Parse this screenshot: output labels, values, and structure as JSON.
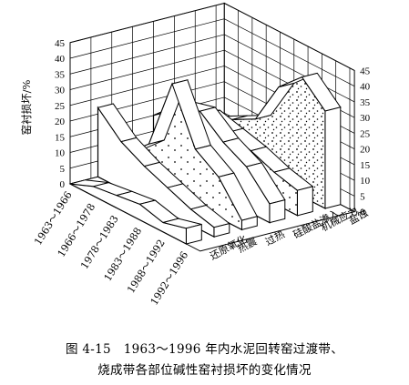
{
  "figure": {
    "caption_line1": "图 4-15　1963～1996 年内水泥回转窑过渡带、",
    "caption_line2": "烧成带各部位碱性窑衬损坏的变化情况"
  },
  "chart_data": {
    "type": "3d-ribbon",
    "ylabel": "窑衬损坏/%",
    "ylim": [
      0,
      45
    ],
    "y_ticks": [
      "0",
      "5",
      "10",
      "15",
      "20",
      "25",
      "30",
      "35",
      "40",
      "45"
    ],
    "periods": [
      "1963～1966",
      "1966～1978",
      "1978～1983",
      "1983～1988",
      "1988～1992",
      "1992～1996"
    ],
    "causes": [
      "还原氧化",
      "热震",
      "过热",
      "硅酸盐渗入",
      "机械应力",
      "盐蚀"
    ],
    "grid": true,
    "series": [
      {
        "name": "还原氧化",
        "values": [
          0,
          3,
          4,
          5,
          3,
          5
        ]
      },
      {
        "name": "热震",
        "values": [
          22,
          15,
          11,
          8,
          5,
          3
        ]
      },
      {
        "name": "过热",
        "values": [
          5,
          12,
          35,
          18,
          13,
          3
        ]
      },
      {
        "name": "硅酸盐渗入",
        "values": [
          15,
          22,
          24,
          18,
          14,
          6
        ]
      },
      {
        "name": "机械应力",
        "values": [
          13,
          17,
          15,
          13,
          10,
          8
        ]
      },
      {
        "name": "盐蚀",
        "values": [
          9,
          13,
          17,
          31,
          38,
          31
        ]
      }
    ]
  }
}
